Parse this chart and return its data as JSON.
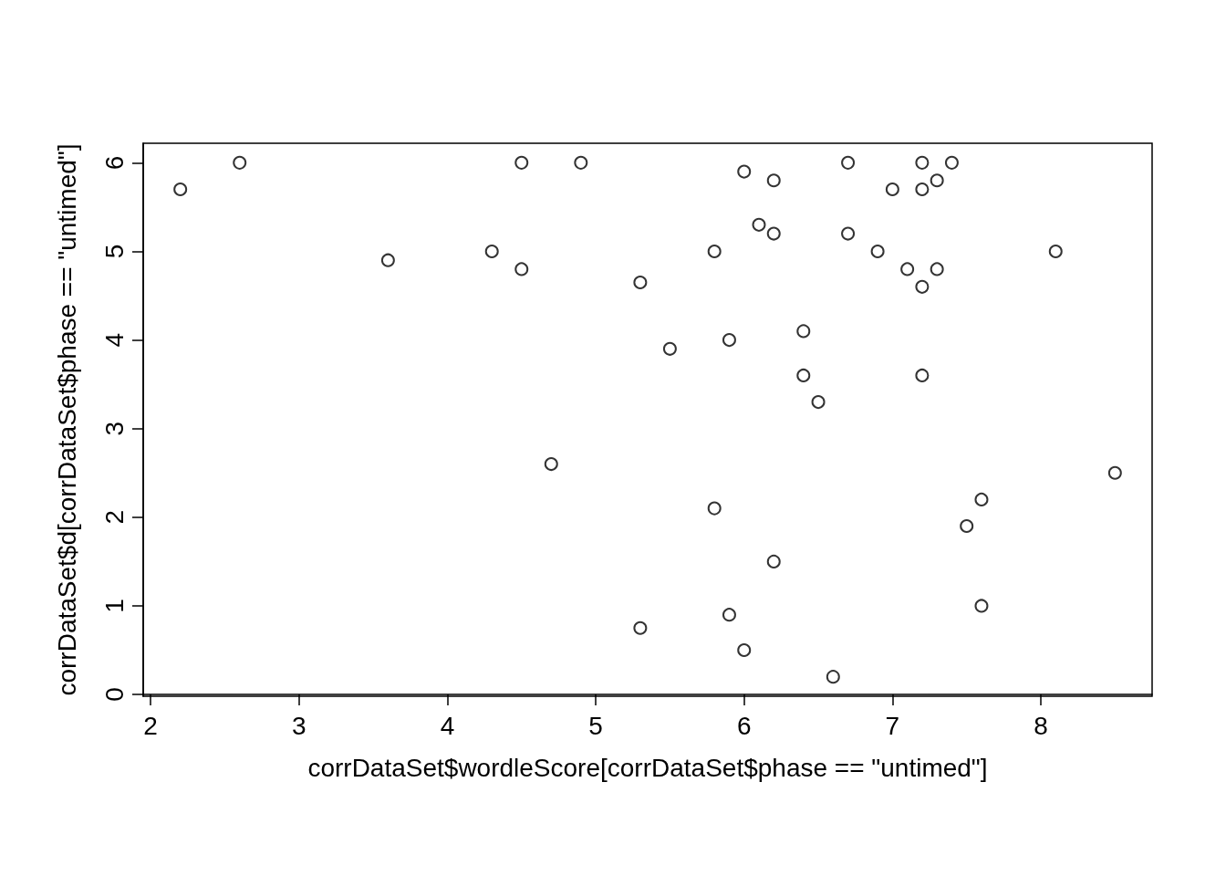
{
  "chart_data": {
    "type": "scatter",
    "xlabel": "corrDataSet$wordleScore[corrDataSet$phase == \"untimed\"]",
    "ylabel": "corrDataSet$d[corrDataSet$phase == \"untimed\"]",
    "x": [
      2.2,
      2.6,
      3.6,
      4.3,
      4.5,
      4.5,
      4.7,
      4.9,
      5.3,
      5.3,
      5.5,
      5.8,
      5.8,
      5.9,
      5.9,
      6.0,
      6.0,
      6.1,
      6.2,
      6.2,
      6.2,
      6.4,
      6.4,
      6.5,
      6.6,
      6.7,
      6.7,
      6.9,
      7.0,
      7.1,
      7.2,
      7.2,
      7.2,
      7.2,
      7.3,
      7.3,
      7.4,
      7.5,
      7.6,
      7.6,
      8.1,
      8.5
    ],
    "values": [
      5.7,
      6,
      4.9,
      5,
      6,
      4.8,
      2.6,
      6,
      4.65,
      0.75,
      3.9,
      5,
      2.1,
      4,
      0.9,
      5.9,
      0.5,
      5.3,
      5.8,
      5.2,
      1.5,
      4.1,
      3.6,
      3.3,
      0.2,
      6,
      5.2,
      5,
      5.7,
      4.8,
      6,
      5.7,
      4.6,
      3.6,
      5.8,
      4.8,
      6,
      1.9,
      2.2,
      1.0,
      5,
      2.5
    ],
    "color": "#000000",
    "marker": "circle",
    "xlim": [
      1.95,
      8.75
    ],
    "ylim": [
      -0.02,
      6.22
    ],
    "xticks": [
      2,
      3,
      4,
      5,
      6,
      7,
      8
    ],
    "yticks": [
      0,
      1,
      2,
      3,
      4,
      5,
      6
    ],
    "grid": false
  }
}
